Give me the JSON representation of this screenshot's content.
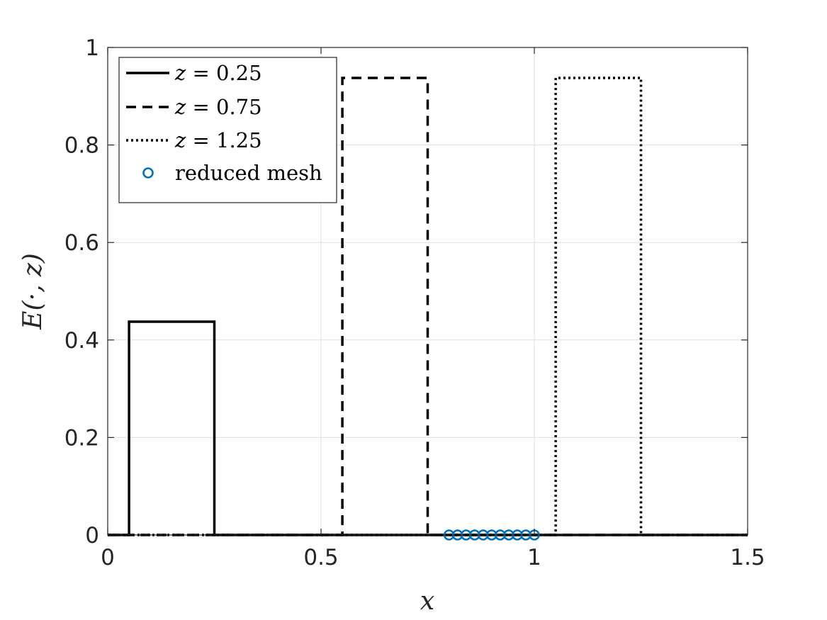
{
  "chart_data": {
    "type": "line",
    "xlabel": "x",
    "ylabel": "E(·, z)",
    "xlim": [
      0,
      1.5
    ],
    "ylim": [
      0,
      1
    ],
    "xticks": [
      0,
      0.5,
      1,
      1.5
    ],
    "xtick_labels": [
      "0",
      "0.5",
      "1",
      "1.5"
    ],
    "yticks": [
      0,
      0.2,
      0.4,
      0.6,
      0.8,
      1
    ],
    "ytick_labels": [
      "0",
      "0.2",
      "0.4",
      "0.6",
      "0.8",
      "1"
    ],
    "grid": true,
    "legend_position": "top-left",
    "series": [
      {
        "name": "z = 0.25",
        "legend_var": "z",
        "legend_value": "= 0.25",
        "style": "solid",
        "color": "#000000",
        "x": [
          0,
          0.05,
          0.05,
          0.25,
          0.25,
          1.5
        ],
        "y": [
          0,
          0,
          0.4375,
          0.4375,
          0,
          0
        ]
      },
      {
        "name": "z = 0.75",
        "legend_var": "z",
        "legend_value": "= 0.75",
        "style": "dashed",
        "color": "#000000",
        "x": [
          0,
          0.55,
          0.55,
          0.75,
          0.75,
          1.5
        ],
        "y": [
          0,
          0,
          0.9375,
          0.9375,
          0,
          0
        ]
      },
      {
        "name": "z = 1.25",
        "legend_var": "z",
        "legend_value": "= 1.25",
        "style": "dotted",
        "color": "#000000",
        "x": [
          0,
          1.05,
          1.05,
          1.25,
          1.25,
          1.5
        ],
        "y": [
          0,
          0,
          0.9375,
          0.9375,
          0,
          0
        ]
      },
      {
        "name": "reduced mesh",
        "legend_var": "",
        "legend_value": "reduced mesh",
        "style": "markers",
        "color": "#0072BD",
        "x": [
          0.8,
          0.82,
          0.84,
          0.86,
          0.88,
          0.9,
          0.92,
          0.94,
          0.96,
          0.98,
          1.0
        ],
        "y": [
          0,
          0,
          0,
          0,
          0,
          0,
          0,
          0,
          0,
          0,
          0
        ]
      }
    ]
  }
}
